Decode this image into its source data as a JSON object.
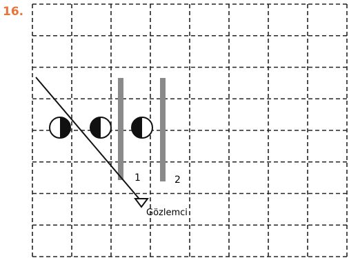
{
  "problem": {
    "number": "16.",
    "mirror_labels": [
      "1",
      "2"
    ],
    "observer_label": "Gözlemci"
  }
}
